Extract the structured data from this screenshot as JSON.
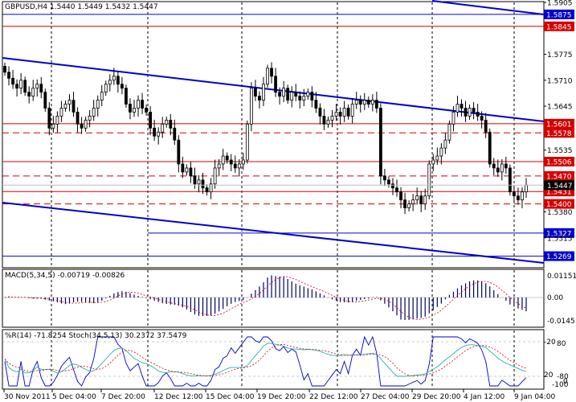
{
  "main_header": "GBPUSD,H4  1.5440 1.5449 1.5432 1.5447",
  "macd_header": "MACD(5,34,5) -0.00719 -0.00826",
  "osc_header": "%R(14) -71.8254  Stoch(34,5,13) 30.2372 37.5479",
  "price_axis_ticks": [
    "1.5905",
    "1.5775",
    "1.5710",
    "1.5645",
    "1.5535",
    "1.5447",
    "1.5380",
    "1.5315"
  ],
  "macd_axis_ticks": [
    "0.01151",
    "0.00",
    "-0.01451"
  ],
  "osc_axis_ticks": [
    "-20",
    "80",
    "20",
    "-80",
    "0",
    "-100"
  ],
  "time_labels": [
    "30 Nov 2011",
    "5 Dec 04:00",
    "7 Dec 20:00",
    "12 Dec 12:00",
    "15 Dec 04:00",
    "19 Dec 20:00",
    "22 Dec 12:00",
    "27 Dec 04:00",
    "29 Dec 20:00",
    "4 Jan 12:00",
    "9 Jan 04:00"
  ],
  "levels": [
    {
      "price": "1.5875",
      "color": "#0000cc"
    },
    {
      "price": "1.5845",
      "color": "#d40000"
    },
    {
      "price": "1.5601",
      "color": "#d40000"
    },
    {
      "price": "1.5578",
      "color": "#d40000"
    },
    {
      "price": "1.5506",
      "color": "#d40000"
    },
    {
      "price": "1.5470",
      "color": "#d40000"
    },
    {
      "price": "1.5431",
      "color": "#d40000"
    },
    {
      "price": "1.5400",
      "color": "#d40000"
    },
    {
      "price": "1.5327",
      "color": "#0000cc"
    },
    {
      "price": "1.5269",
      "color": "#0000cc"
    }
  ],
  "current_price": "1.5447",
  "chart_data": {
    "type": "candlestick",
    "symbol": "GBPUSD",
    "timeframe": "H4",
    "ylim": [
      1.524,
      1.5905
    ],
    "close": [
      1.573,
      1.5715,
      1.57,
      1.569,
      1.571,
      1.568,
      1.567,
      1.569,
      1.57,
      1.568,
      1.564,
      1.559,
      1.56,
      1.562,
      1.564,
      1.565,
      1.566,
      1.563,
      1.56,
      1.559,
      1.561,
      1.562,
      1.564,
      1.566,
      1.568,
      1.57,
      1.571,
      1.572,
      1.57,
      1.569,
      1.565,
      1.563,
      1.564,
      1.566,
      1.564,
      1.563,
      1.559,
      1.557,
      1.558,
      1.56,
      1.561,
      1.559,
      1.556,
      1.55,
      1.548,
      1.549,
      1.547,
      1.545,
      1.546,
      1.544,
      1.543,
      1.545,
      1.549,
      1.55,
      1.552,
      1.551,
      1.55,
      1.549,
      1.55,
      1.551,
      1.56,
      1.569,
      1.567,
      1.566,
      1.57,
      1.574,
      1.572,
      1.568,
      1.567,
      1.569,
      1.566,
      1.568,
      1.567,
      1.566,
      1.567,
      1.568,
      1.566,
      1.564,
      1.562,
      1.56,
      1.561,
      1.562,
      1.563,
      1.562,
      1.564,
      1.562,
      1.565,
      1.566,
      1.565,
      1.566,
      1.565,
      1.566,
      1.564,
      1.547,
      1.546,
      1.545,
      1.544,
      1.543,
      1.541,
      1.539,
      1.54,
      1.541,
      1.542,
      1.54,
      1.542,
      1.55,
      1.551,
      1.552,
      1.554,
      1.556,
      1.56,
      1.563,
      1.565,
      1.564,
      1.562,
      1.564,
      1.563,
      1.562,
      1.561,
      1.558,
      1.55,
      1.549,
      1.548,
      1.55,
      1.549,
      1.543,
      1.542,
      1.541,
      1.543,
      1.5447
    ]
  }
}
